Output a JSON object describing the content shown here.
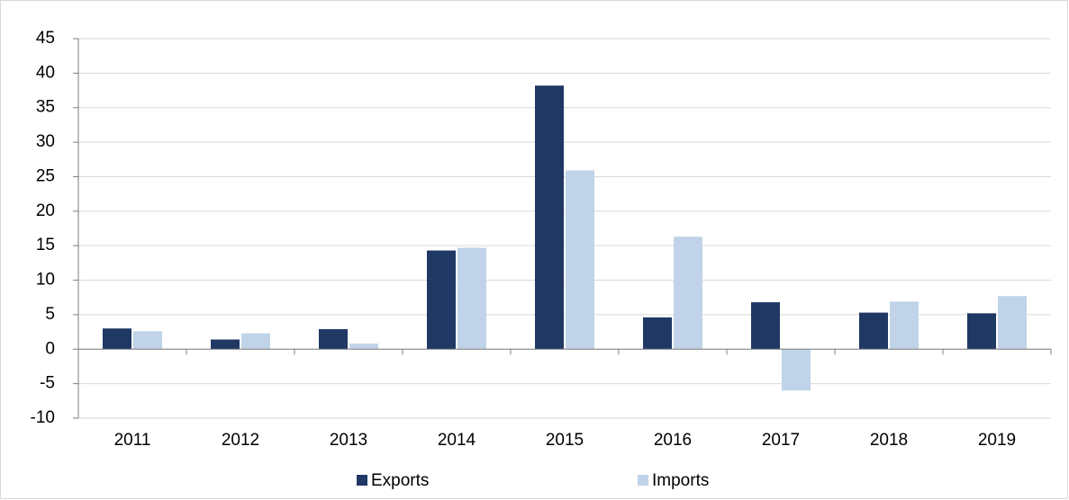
{
  "chart_data": {
    "type": "bar",
    "categories": [
      "2011",
      "2012",
      "2013",
      "2014",
      "2015",
      "2016",
      "2017",
      "2018",
      "2019"
    ],
    "series": [
      {
        "name": "Exports",
        "color": "#203864",
        "values": [
          3.0,
          1.4,
          2.9,
          14.3,
          38.2,
          4.6,
          6.8,
          5.3,
          5.2
        ]
      },
      {
        "name": "Imports",
        "color": "#c0d3e8",
        "values": [
          2.6,
          2.3,
          0.8,
          14.7,
          25.9,
          16.3,
          -6.0,
          6.9,
          7.7
        ]
      }
    ],
    "ylim": [
      -10,
      45
    ],
    "yticks": [
      -10,
      -5,
      0,
      5,
      10,
      15,
      20,
      25,
      30,
      35,
      40,
      45
    ],
    "grid": true,
    "legend": "bottom"
  }
}
